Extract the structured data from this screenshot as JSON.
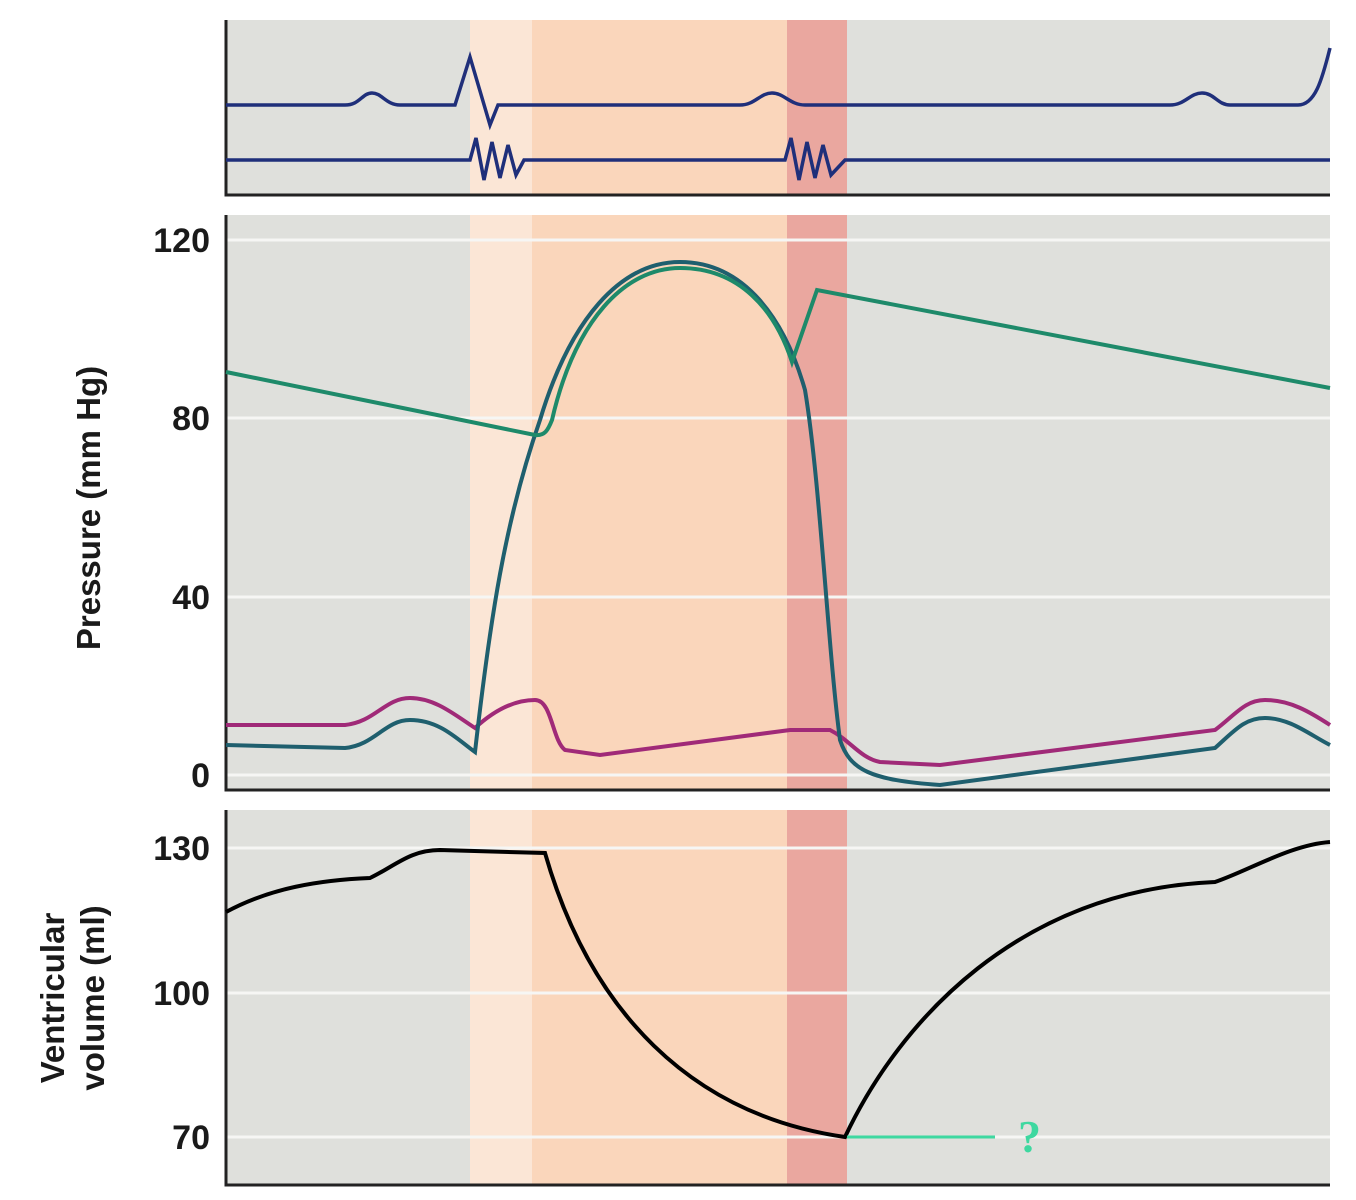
{
  "chart_data": [
    {
      "type": "line",
      "panel": "electrical and heart sound traces",
      "series": [
        {
          "color": "#1f2f7a",
          "values_note": ""
        },
        {
          "color": "#1f2f7a"
        }
      ]
    },
    {
      "type": "line",
      "ylabel": "Pressure (mm Hg)",
      "ylim": [
        0,
        125
      ],
      "yticks": [
        "120",
        "80",
        "40",
        "0"
      ],
      "grid": true,
      "series": [
        {
          "color": "#1e8a6a",
          "min": 76,
          "max": 114,
          "start": 91,
          "end": 87
        },
        {
          "color": "#1f5f6e",
          "min": 0,
          "max": 115
        },
        {
          "color": "#a02a78",
          "min": 4,
          "max": 17
        }
      ]
    },
    {
      "type": "line",
      "ylabel": "Ventricular volume (ml)",
      "ylim": [
        60,
        140
      ],
      "yticks": [
        "130",
        "100",
        "70"
      ],
      "grid": true,
      "series": [
        {
          "color": "#000000",
          "min": 70,
          "max": 131
        }
      ],
      "annotation": {
        "text": "?",
        "color": "#3ed8a0",
        "value": 70
      }
    }
  ],
  "colors": {
    "background": "#dfe0dc",
    "band_light": "#fbe6d6",
    "band_peach": "#fad6bb",
    "band_red": "#eaa79f"
  },
  "labels": {
    "pressure_axis": "Pressure (mm Hg)",
    "volume_axis_line1": "Ventricular",
    "volume_axis_line2": "volume (ml)",
    "question": "?",
    "ticks_p": [
      "120",
      "80",
      "40",
      "0"
    ],
    "ticks_v": [
      "130",
      "100",
      "70"
    ]
  }
}
